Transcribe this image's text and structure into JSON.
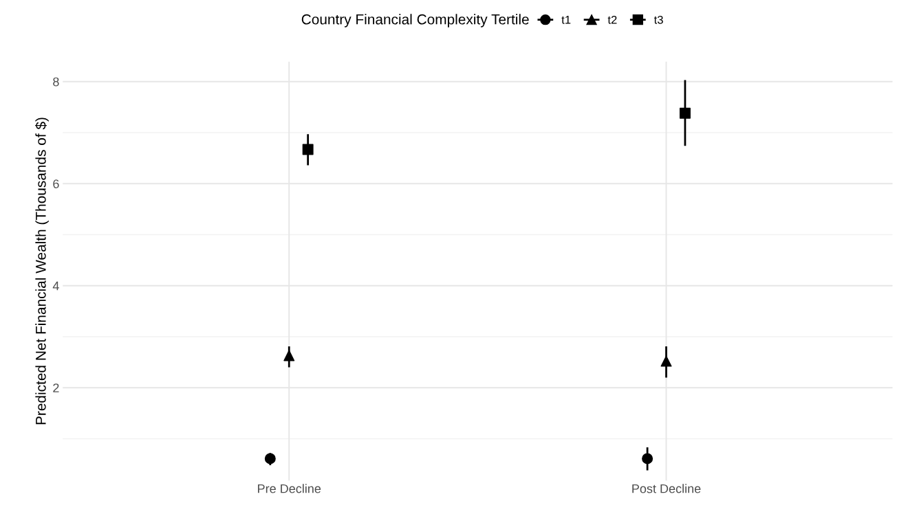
{
  "chart_data": {
    "type": "scatter",
    "ylabel": "Predicted Net Financial Wealth (Thousands of $)",
    "legend_title": "Country Financial Complexity Tertile",
    "categories": [
      "Pre Decline",
      "Post Decline"
    ],
    "series": [
      {
        "name": "t1",
        "color": "#000000",
        "marker": "circle",
        "values": [
          0.61,
          0.61
        ],
        "errors": [
          [
            0.48,
            0.72
          ],
          [
            0.38,
            0.83
          ]
        ]
      },
      {
        "name": "t2",
        "color": "#000000",
        "marker": "triangle",
        "values": [
          2.63,
          2.52
        ],
        "errors": [
          [
            2.4,
            2.81
          ],
          [
            2.2,
            2.81
          ]
        ]
      },
      {
        "name": "t3",
        "color": "#000000",
        "marker": "square",
        "values": [
          6.67,
          7.38
        ],
        "errors": [
          [
            6.36,
            6.97
          ],
          [
            6.74,
            8.03
          ]
        ]
      }
    ],
    "ylim": [
      0.18,
      8.39
    ],
    "yticks": [
      2,
      4,
      6,
      8
    ],
    "grid": true,
    "legend": "top"
  }
}
